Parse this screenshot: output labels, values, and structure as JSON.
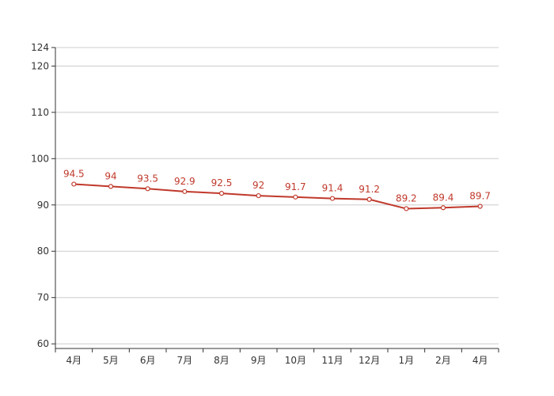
{
  "chart_data": {
    "type": "line",
    "categories": [
      "4月",
      "5月",
      "6月",
      "7月",
      "8月",
      "9月",
      "10月",
      "11月",
      "12月",
      "1月",
      "2月",
      "4月"
    ],
    "series": [
      {
        "values": [
          94.5,
          94,
          93.5,
          92.9,
          92.5,
          92,
          91.7,
          91.4,
          91.2,
          89.2,
          89.4,
          89.7
        ],
        "labels": [
          "94.5",
          "94",
          "93.5",
          "92.9",
          "92.5",
          "92",
          "91.7",
          "91.4",
          "91.2",
          "89.2",
          "89.4",
          "89.7"
        ]
      }
    ],
    "y_ticks": [
      "124",
      "120",
      "110",
      "100",
      "90",
      "80",
      "70",
      "60"
    ],
    "y_tick_values": [
      124,
      120,
      110,
      100,
      90,
      80,
      70,
      60
    ],
    "ylim": [
      59,
      124
    ],
    "grid": true,
    "legend": "none",
    "title": "",
    "xlabel": "",
    "ylabel": ""
  },
  "colors": {
    "line": "#c0392b",
    "label": "#c0392b",
    "grid": "#cccccc",
    "axis": "#333333",
    "tick_text": "#333333",
    "marker_fill": "#ffffff"
  }
}
